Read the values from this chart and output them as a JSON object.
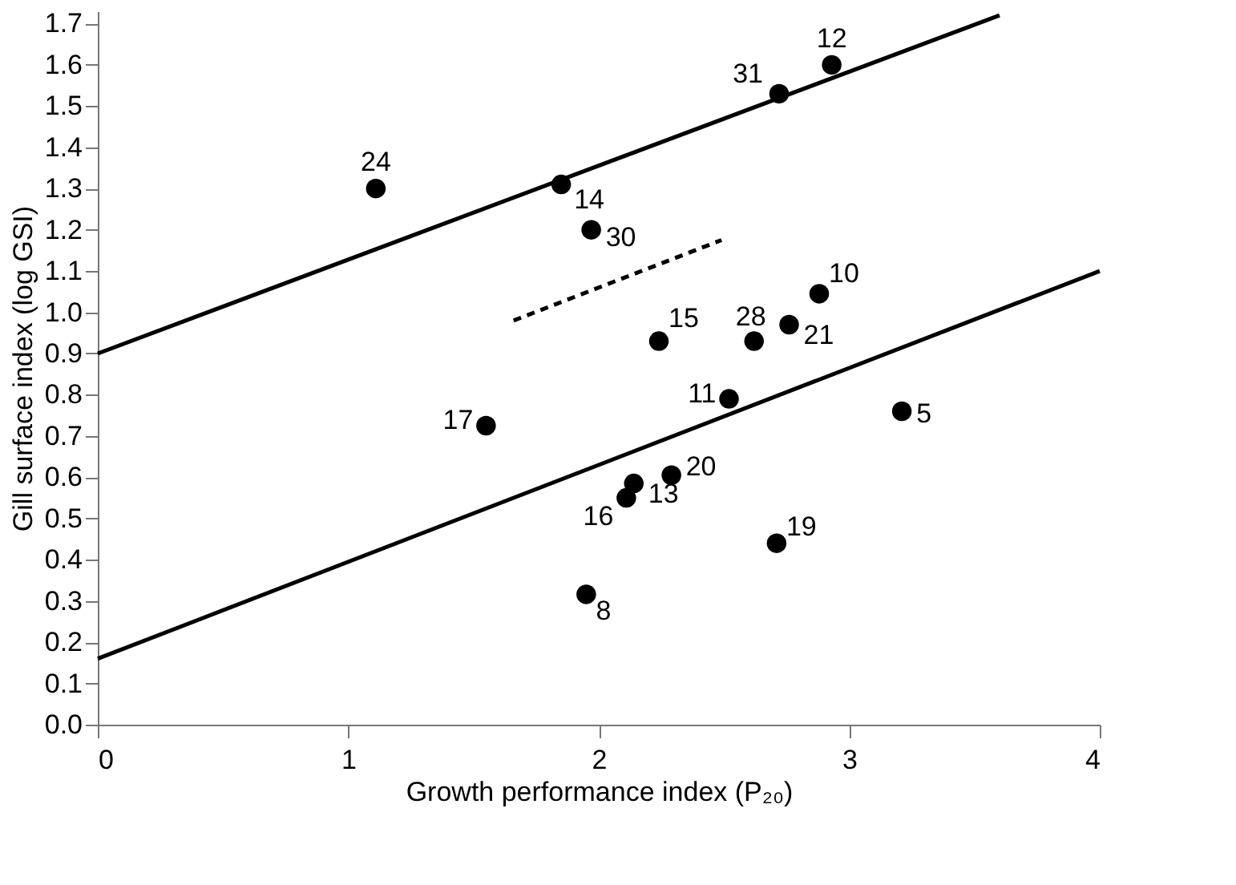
{
  "chart_data": {
    "type": "scatter",
    "xlabel": "Growth performance index (P₂₀)",
    "ylabel": "Gill surface index (log GSI)",
    "xlim": [
      0,
      4
    ],
    "ylim": [
      0,
      1.73
    ],
    "xticks": [
      0,
      1,
      2,
      3,
      4
    ],
    "yticks": [
      {
        "value": 0,
        "label": "0.0"
      },
      0.1,
      0.2,
      0.3,
      0.4,
      0.5,
      0.6,
      0.7,
      0.8,
      0.9,
      {
        "value": 1,
        "label": "1.0"
      },
      1.1,
      1.2,
      1.3,
      1.4,
      1.5,
      1.6,
      1.7
    ],
    "grid": false,
    "series": [
      {
        "marker": "circle",
        "color": "#000000",
        "x": [
          1.11,
          1.85,
          1.97,
          2.72,
          2.93,
          2.88,
          2.24,
          2.62,
          2.76,
          2.52,
          3.21,
          1.55,
          2.29,
          2.14,
          2.11,
          2.71,
          1.95
        ],
        "values": [
          1.3,
          1.31,
          1.2,
          1.53,
          1.6,
          1.045,
          0.93,
          0.93,
          0.97,
          0.79,
          0.76,
          0.725,
          0.605,
          0.585,
          0.55,
          0.44,
          0.316
        ]
      },
      {
        "type": "line",
        "color": "#000000",
        "x": [
          0,
          3.6
        ],
        "values": [
          0.9,
          1.72
        ],
        "line_style": "solid",
        "marker": "none"
      },
      {
        "type": "line",
        "color": "#000000",
        "x": [
          0,
          4
        ],
        "values": [
          0.16,
          1.1
        ],
        "line_style": "solid",
        "marker": "none"
      },
      {
        "type": "line",
        "color": "#000000",
        "x": [
          1.66,
          2.49
        ],
        "values": [
          0.98,
          1.175
        ],
        "line_style": "dashed",
        "marker": "none"
      }
    ],
    "annotations": [
      {
        "text": "24",
        "x": 1.11,
        "y": 1.3
      },
      {
        "text": "14",
        "x": 1.85,
        "y": 1.31
      },
      {
        "text": "30",
        "x": 1.97,
        "y": 1.2
      },
      {
        "text": "31",
        "x": 2.72,
        "y": 1.53
      },
      {
        "text": "12",
        "x": 2.93,
        "y": 1.6
      },
      {
        "text": "10",
        "x": 2.88,
        "y": 1.045
      },
      {
        "text": "15",
        "x": 2.24,
        "y": 0.93
      },
      {
        "text": "28",
        "x": 2.62,
        "y": 0.93
      },
      {
        "text": "21",
        "x": 2.76,
        "y": 0.97
      },
      {
        "text": "11",
        "x": 2.52,
        "y": 0.79
      },
      {
        "text": "5",
        "x": 3.21,
        "y": 0.76
      },
      {
        "text": "17",
        "x": 1.55,
        "y": 0.725
      },
      {
        "text": "20",
        "x": 2.29,
        "y": 0.605
      },
      {
        "text": "13",
        "x": 2.14,
        "y": 0.585
      },
      {
        "text": "16",
        "x": 2.11,
        "y": 0.55
      },
      {
        "text": "19",
        "x": 2.71,
        "y": 0.44
      },
      {
        "text": "8",
        "x": 1.95,
        "y": 0.316
      }
    ]
  }
}
